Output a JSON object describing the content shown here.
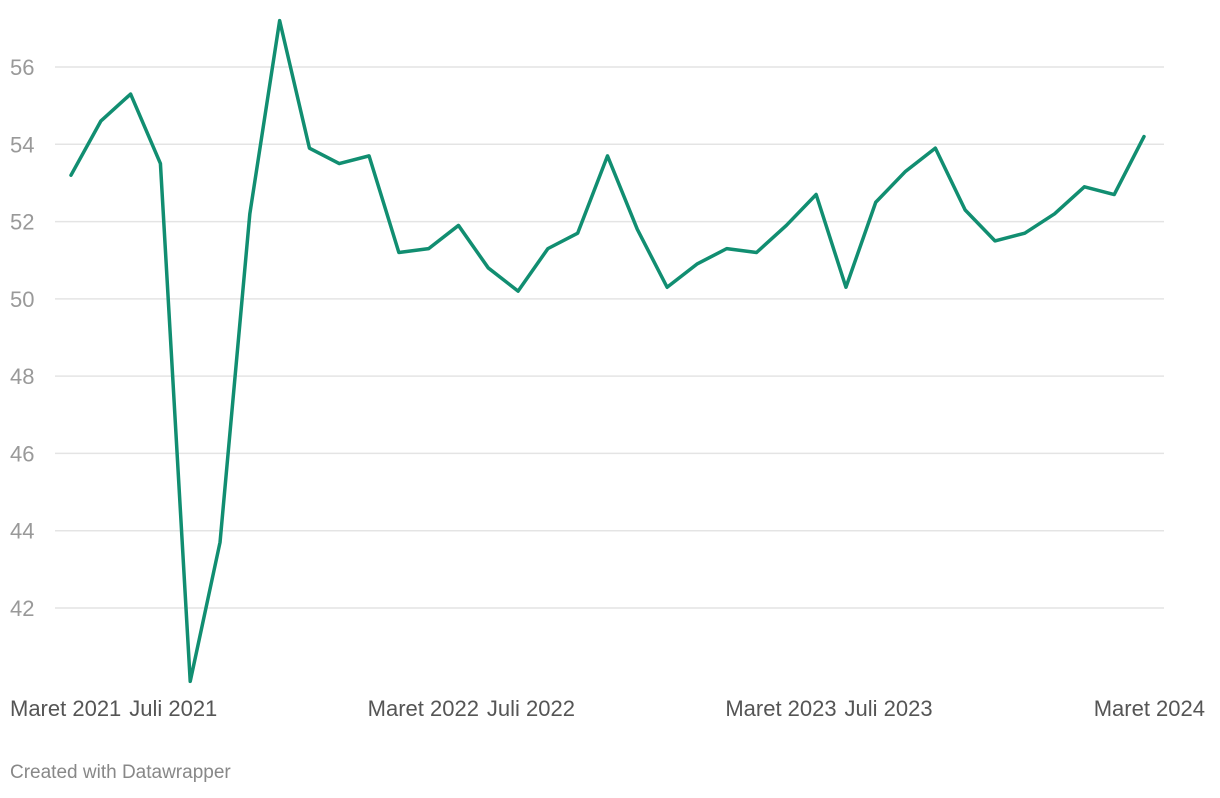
{
  "chart_data": {
    "type": "line",
    "title": "",
    "xlabel": "",
    "ylabel": "",
    "y_ticks": [
      42,
      44,
      46,
      48,
      50,
      52,
      54,
      56
    ],
    "ylim": [
      40,
      57.5
    ],
    "x_tick_labels": [
      {
        "label": "Maret 2021",
        "index": 0
      },
      {
        "label": "Juli 2021",
        "index": 4
      },
      {
        "label": "Maret 2022",
        "index": 12
      },
      {
        "label": "Juli 2022",
        "index": 16
      },
      {
        "label": "Maret 2023",
        "index": 24
      },
      {
        "label": "Juli 2023",
        "index": 28
      },
      {
        "label": "Maret 2024",
        "index": 36
      }
    ],
    "grid": true,
    "series": [
      {
        "color": "#118e71",
        "values": [
          53.2,
          54.6,
          55.3,
          53.5,
          40.1,
          43.7,
          52.2,
          57.2,
          53.9,
          53.5,
          53.7,
          51.2,
          51.3,
          51.9,
          50.8,
          50.2,
          51.3,
          51.7,
          53.7,
          51.8,
          50.3,
          50.9,
          51.3,
          51.2,
          51.9,
          52.7,
          50.3,
          52.5,
          53.3,
          53.9,
          52.3,
          51.5,
          51.7,
          52.2,
          52.9,
          52.7,
          54.2
        ]
      }
    ]
  },
  "footer": {
    "credit": "Created with Datawrapper"
  },
  "colors": {
    "line": "#118e71",
    "grid": "#e4e4e4",
    "tick_text": "#999999",
    "x_tick_text": "#555555",
    "credit_text": "#888888"
  }
}
